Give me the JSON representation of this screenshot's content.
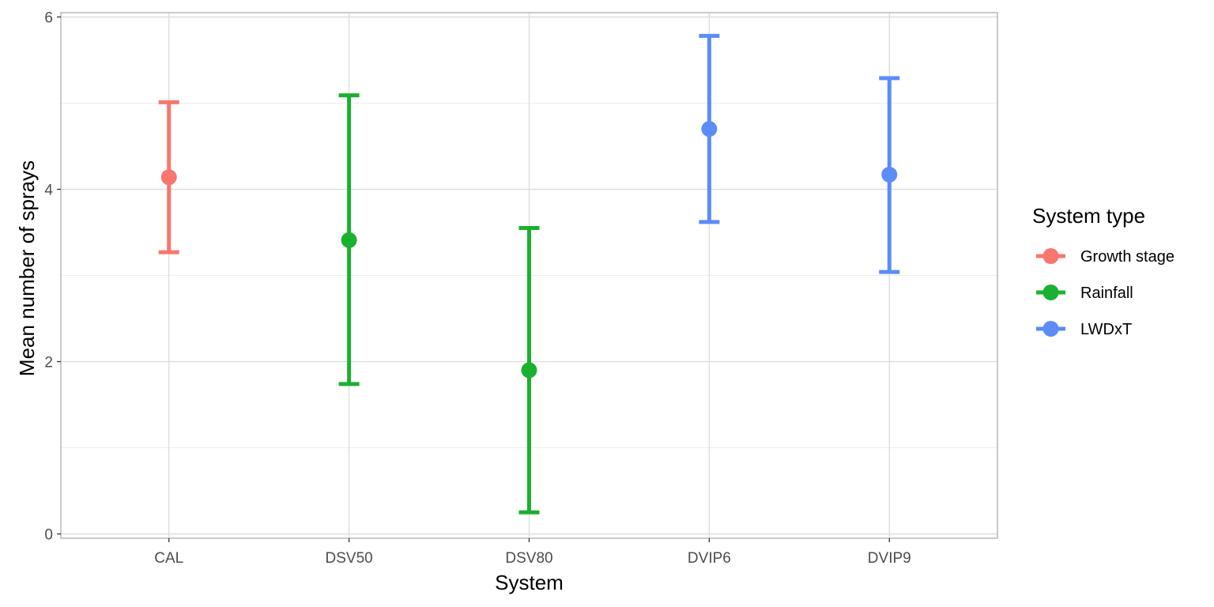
{
  "chart_data": {
    "type": "scatter",
    "subtype": "point-with-errorbars",
    "title": "",
    "xlabel": "System",
    "ylabel": "Mean number of sprays",
    "ylim": [
      -0.05,
      6.05
    ],
    "yticks": [
      0,
      2,
      4,
      6
    ],
    "y_minor_ticks": [
      1,
      3,
      5
    ],
    "grid": true,
    "legend_placement": "right",
    "categories": [
      "CAL",
      "DSV50",
      "DSV80",
      "DVIP6",
      "DVIP9"
    ],
    "points": [
      {
        "x": "CAL",
        "y": 4.14,
        "ymin": 3.27,
        "ymax": 5.01,
        "group": "Growth stage"
      },
      {
        "x": "DSV50",
        "y": 3.41,
        "ymin": 1.74,
        "ymax": 5.09,
        "group": "Rainfall"
      },
      {
        "x": "DSV80",
        "y": 1.9,
        "ymin": 0.25,
        "ymax": 3.55,
        "group": "Rainfall"
      },
      {
        "x": "DVIP6",
        "y": 4.7,
        "ymin": 3.62,
        "ymax": 5.78,
        "group": "LWDxT"
      },
      {
        "x": "DVIP9",
        "y": 4.17,
        "ymin": 3.04,
        "ymax": 5.29,
        "group": "LWDxT"
      }
    ],
    "legend": {
      "title": "System type",
      "entries": [
        {
          "label": "Growth stage",
          "color": "#F8766D"
        },
        {
          "label": "Rainfall",
          "color": "#1BB02F"
        },
        {
          "label": "LWDxT",
          "color": "#5B8CF8"
        }
      ]
    }
  }
}
